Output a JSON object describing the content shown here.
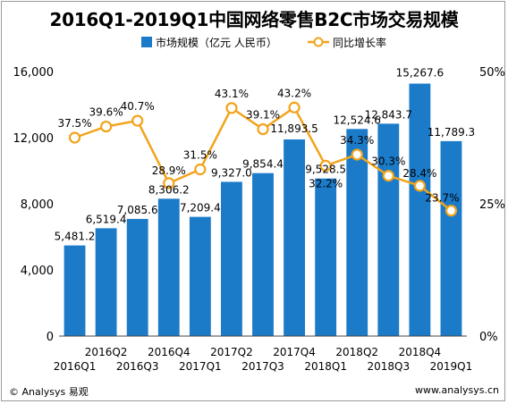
{
  "header": {
    "title": "2016Q1-2019Q1中国网络零售B2C市场交易规模"
  },
  "footer": {
    "left": "© Analysys 易观",
    "right": "www.analysys.cn"
  },
  "colors": {
    "bar": "#1b7bc9",
    "line": "#f2a41c",
    "marker_fill": "#ffffff",
    "grid": "#d9d9d9",
    "axis": "#444444"
  },
  "chart_data": {
    "type": "bar",
    "title": "2016Q1-2019Q1中国网络零售B2C市场交易规模",
    "categories": [
      "2016Q1",
      "2016Q2",
      "2016Q3",
      "2016Q4",
      "2017Q1",
      "2017Q2",
      "2017Q3",
      "2017Q4",
      "2018Q1",
      "2018Q2",
      "2018Q3",
      "2018Q4",
      "2019Q1"
    ],
    "series": [
      {
        "name": "市场规模（亿元 人民币）",
        "type": "bar",
        "axis": "left",
        "values": [
          5481.2,
          6519.4,
          7085.6,
          8306.2,
          7209.4,
          9327.0,
          9854.4,
          11893.5,
          9528.5,
          12524.6,
          12843.7,
          15267.6,
          11789.3
        ],
        "labels": [
          "5,481.2",
          "6,519.4",
          "7,085.6",
          "8,306.2",
          "7,209.4",
          "9,327.0",
          "9,854.4",
          "11,893.5",
          "9,528.5",
          "12,524.6",
          "12,843.7",
          "15,267.6",
          "11,789.3"
        ]
      },
      {
        "name": "同比增长率",
        "type": "line",
        "axis": "right",
        "values": [
          37.5,
          39.6,
          40.7,
          28.9,
          31.5,
          43.1,
          39.1,
          43.2,
          32.2,
          34.3,
          30.3,
          28.4,
          23.7
        ],
        "labels": [
          "37.5%",
          "39.6%",
          "40.7%",
          "28.9%",
          "31.5%",
          "43.1%",
          "39.1%",
          "43.2%",
          "32.2%",
          "34.3%",
          "30.3%",
          "28.4%",
          "23.7%"
        ]
      }
    ],
    "y_left": {
      "min": 0,
      "max": 16000,
      "ticks": [
        "0",
        "4,000",
        "8,000",
        "12,000",
        "16,000"
      ]
    },
    "y_right": {
      "min": 0,
      "max": 50,
      "ticks": [
        "0%",
        "25%",
        "50%"
      ]
    },
    "legend_position": "top-center",
    "grid": false
  }
}
